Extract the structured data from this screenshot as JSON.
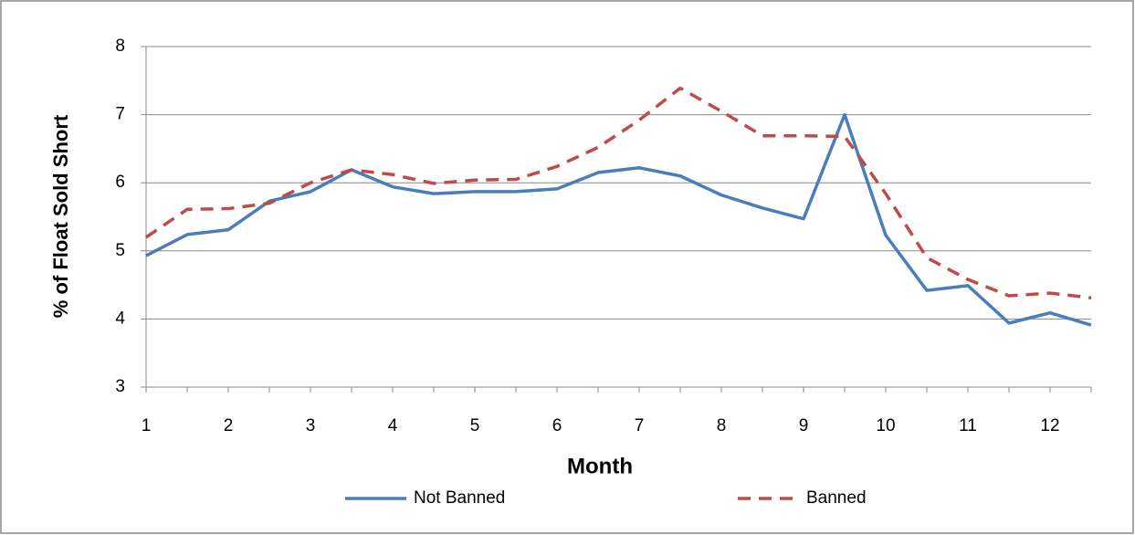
{
  "chart_data": {
    "type": "line",
    "x_label": "Month",
    "y_label": "% of Float Sold Short",
    "x": [
      1,
      1.5,
      2,
      2.5,
      3,
      3.5,
      4,
      4.5,
      5,
      5.5,
      6,
      6.5,
      7,
      7.5,
      8,
      8.5,
      9,
      9.5,
      10,
      10.5,
      11,
      11.5,
      12,
      12.5
    ],
    "series": [
      {
        "name": "Not Banned",
        "color": "#4a7ebb",
        "dash": "solid",
        "values": [
          4.93,
          5.24,
          5.31,
          5.73,
          5.87,
          6.19,
          5.94,
          5.84,
          5.87,
          5.87,
          5.91,
          6.15,
          6.22,
          6.1,
          5.82,
          5.63,
          5.47,
          7.0,
          5.23,
          4.42,
          4.49,
          3.94,
          4.09,
          3.91
        ]
      },
      {
        "name": "Banned",
        "color": "#be4b48",
        "dash": "dashed",
        "values": [
          5.2,
          5.61,
          5.62,
          5.7,
          6.0,
          6.19,
          6.12,
          5.99,
          6.04,
          6.05,
          6.24,
          6.52,
          6.92,
          7.39,
          7.05,
          6.69,
          6.69,
          6.68,
          5.84,
          4.9,
          4.58,
          4.34,
          4.38,
          4.31
        ]
      }
    ],
    "xlim": [
      1,
      12.5
    ],
    "xticks": [
      1,
      2,
      3,
      4,
      5,
      6,
      7,
      8,
      9,
      10,
      11,
      12
    ],
    "ylim": [
      3,
      8
    ],
    "yticks": [
      3,
      4,
      5,
      6,
      7,
      8
    ],
    "grid": true,
    "legend": "bottom"
  }
}
